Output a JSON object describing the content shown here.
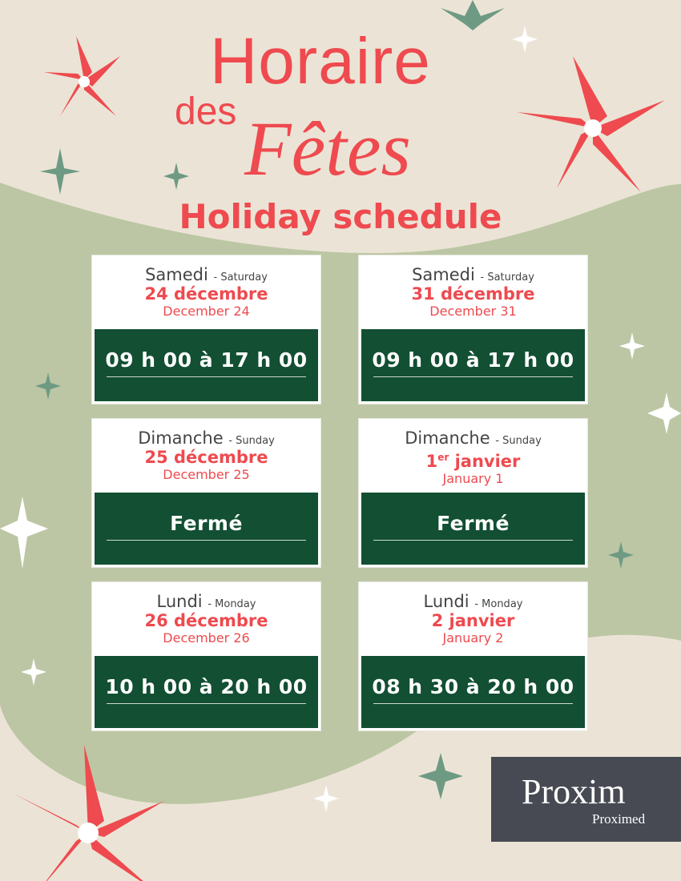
{
  "title": {
    "line1": "Horaire",
    "line2": "des",
    "line3": "Fêtes",
    "subtitle": "Holiday schedule"
  },
  "cards": [
    {
      "day_fr": "Samedi",
      "day_en": "- Saturday",
      "date_fr": "24 décembre",
      "date_en": "December 24",
      "hours": "09 h 00 à 17 h 00"
    },
    {
      "day_fr": "Samedi",
      "day_en": "- Saturday",
      "date_fr": "31 décembre",
      "date_en": "December 31",
      "hours": "09 h 00 à 17 h 00"
    },
    {
      "day_fr": "Dimanche",
      "day_en": "- Sunday",
      "date_fr": "25 décembre",
      "date_en": "December 25",
      "hours": "Fermé"
    },
    {
      "day_fr": "Dimanche",
      "day_en": "- Sunday",
      "date_fr_num": "1",
      "date_fr_sup": "er",
      "date_fr_rest": " janvier",
      "date_en": "January 1",
      "hours": "Fermé"
    },
    {
      "day_fr": "Lundi",
      "day_en": "- Monday",
      "date_fr": "26 décembre",
      "date_en": "December 26",
      "hours": "10 h 00 à 20 h 00"
    },
    {
      "day_fr": "Lundi",
      "day_en": "- Monday",
      "date_fr": "2 janvier",
      "date_en": "January 2",
      "hours": "08 h 30 à 20 h 00"
    }
  ],
  "logo": {
    "brand": "Proxim",
    "sub": "Proximed"
  },
  "colors": {
    "red": "#ee4a4f",
    "green": "#124f33",
    "beige": "#ebe4d6",
    "sage": "#bcc6a4",
    "logo_bg": "#474a53",
    "logo_accent": "#9cc93b"
  }
}
